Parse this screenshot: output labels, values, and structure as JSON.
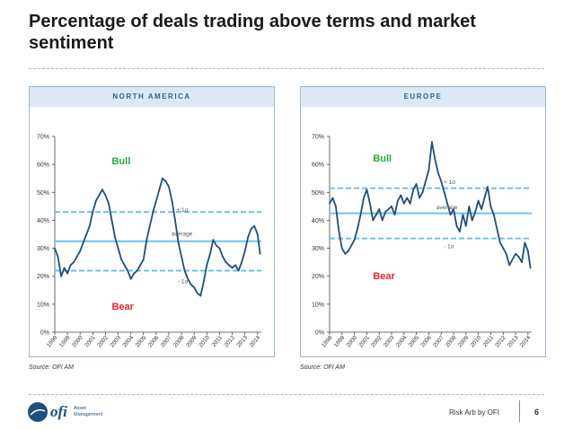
{
  "header": {
    "title": "Percentage of deals trading above terms and market sentiment"
  },
  "colors": {
    "line": "#1f4f7d",
    "average": "#6cc4ea",
    "band": "#6cc4ea",
    "bull": "#2aa63c",
    "bear": "#e2262a",
    "panel_header_bg": "#dce9f4",
    "panel_header_text": "#3a5e86"
  },
  "chart_data": [
    {
      "type": "line",
      "panel_title": "NORTH AMERICA",
      "x": [
        "1998",
        "1999",
        "2000",
        "2001",
        "2002",
        "2003",
        "2004",
        "2005",
        "2006",
        "2007",
        "2008",
        "2009",
        "2010",
        "2011",
        "2012",
        "2013",
        "2014"
      ],
      "xlim": [
        1998,
        2014.3
      ],
      "ylim": [
        0,
        70
      ],
      "yticks": [
        "0%",
        "10%",
        "20%",
        "30%",
        "40%",
        "50%",
        "60%",
        "70%"
      ],
      "grid": false,
      "series": [
        {
          "name": "% of deals trading above terms",
          "points": [
            [
              1998.0,
              30
            ],
            [
              1998.25,
              27
            ],
            [
              1998.5,
              20
            ],
            [
              1998.75,
              23
            ],
            [
              1999.0,
              21
            ],
            [
              1999.25,
              24
            ],
            [
              1999.5,
              25
            ],
            [
              1999.75,
              27
            ],
            [
              2000.0,
              29
            ],
            [
              2000.25,
              32
            ],
            [
              2000.5,
              35
            ],
            [
              2000.75,
              38
            ],
            [
              2001.0,
              43
            ],
            [
              2001.25,
              47
            ],
            [
              2001.5,
              49
            ],
            [
              2001.75,
              51
            ],
            [
              2002.0,
              49
            ],
            [
              2002.25,
              46
            ],
            [
              2002.5,
              40
            ],
            [
              2002.75,
              34
            ],
            [
              2003.0,
              30
            ],
            [
              2003.25,
              26
            ],
            [
              2003.5,
              24
            ],
            [
              2003.75,
              22
            ],
            [
              2004.0,
              19
            ],
            [
              2004.25,
              21
            ],
            [
              2004.5,
              22
            ],
            [
              2004.75,
              24
            ],
            [
              2005.0,
              26
            ],
            [
              2005.25,
              33
            ],
            [
              2005.5,
              38
            ],
            [
              2005.75,
              43
            ],
            [
              2006.0,
              47
            ],
            [
              2006.25,
              51
            ],
            [
              2006.5,
              55
            ],
            [
              2006.75,
              54
            ],
            [
              2007.0,
              52
            ],
            [
              2007.25,
              47
            ],
            [
              2007.5,
              40
            ],
            [
              2007.75,
              32
            ],
            [
              2008.0,
              27
            ],
            [
              2008.25,
              22
            ],
            [
              2008.5,
              19
            ],
            [
              2008.75,
              17
            ],
            [
              2009.0,
              16
            ],
            [
              2009.25,
              14
            ],
            [
              2009.5,
              13
            ],
            [
              2009.75,
              18
            ],
            [
              2010.0,
              24
            ],
            [
              2010.25,
              28
            ],
            [
              2010.5,
              33
            ],
            [
              2010.75,
              31
            ],
            [
              2011.0,
              30
            ],
            [
              2011.25,
              27
            ],
            [
              2011.5,
              25
            ],
            [
              2011.75,
              24
            ],
            [
              2012.0,
              23
            ],
            [
              2012.25,
              24
            ],
            [
              2012.5,
              22
            ],
            [
              2012.75,
              25
            ],
            [
              2013.0,
              29
            ],
            [
              2013.25,
              34
            ],
            [
              2013.5,
              37
            ],
            [
              2013.75,
              38
            ],
            [
              2014.0,
              35
            ],
            [
              2014.2,
              28
            ]
          ]
        }
      ],
      "average": 32.5,
      "plus_sigma": 43,
      "minus_sigma": 22,
      "annotations": {
        "bull": "Bull",
        "bear": "Bear",
        "plus_sigma": "+ 1σ",
        "average": "average",
        "minus_sigma": "- 1σ"
      },
      "source": "Source: OFI AM"
    },
    {
      "type": "line",
      "panel_title": "EUROPE",
      "x": [
        "1998",
        "1999",
        "2000",
        "2001",
        "2002",
        "2003",
        "2004",
        "2005",
        "2006",
        "2007",
        "2008",
        "2009",
        "2010",
        "2011",
        "2012",
        "2013",
        "2014"
      ],
      "xlim": [
        1998,
        2014.3
      ],
      "ylim": [
        0,
        70
      ],
      "yticks": [
        "0%",
        "10%",
        "20%",
        "30%",
        "40%",
        "50%",
        "60%",
        "70%"
      ],
      "grid": false,
      "series": [
        {
          "name": "% of deals trading above terms",
          "points": [
            [
              1998.0,
              46
            ],
            [
              1998.25,
              48
            ],
            [
              1998.5,
              45
            ],
            [
              1998.75,
              36
            ],
            [
              1999.0,
              30
            ],
            [
              1999.25,
              28
            ],
            [
              1999.5,
              29
            ],
            [
              1999.75,
              31
            ],
            [
              2000.0,
              33
            ],
            [
              2000.25,
              37
            ],
            [
              2000.5,
              42
            ],
            [
              2000.75,
              48
            ],
            [
              2001.0,
              51
            ],
            [
              2001.25,
              46
            ],
            [
              2001.5,
              40
            ],
            [
              2001.75,
              42
            ],
            [
              2002.0,
              44
            ],
            [
              2002.25,
              40
            ],
            [
              2002.5,
              43
            ],
            [
              2002.75,
              44
            ],
            [
              2003.0,
              45
            ],
            [
              2003.25,
              42
            ],
            [
              2003.5,
              47
            ],
            [
              2003.75,
              49
            ],
            [
              2004.0,
              46
            ],
            [
              2004.25,
              48
            ],
            [
              2004.5,
              46
            ],
            [
              2004.75,
              51
            ],
            [
              2005.0,
              53
            ],
            [
              2005.25,
              48
            ],
            [
              2005.5,
              50
            ],
            [
              2005.75,
              54
            ],
            [
              2006.0,
              58
            ],
            [
              2006.25,
              68
            ],
            [
              2006.5,
              62
            ],
            [
              2006.75,
              57
            ],
            [
              2007.0,
              54
            ],
            [
              2007.25,
              50
            ],
            [
              2007.5,
              46
            ],
            [
              2007.75,
              42
            ],
            [
              2008.0,
              44
            ],
            [
              2008.25,
              38
            ],
            [
              2008.5,
              36
            ],
            [
              2008.75,
              42
            ],
            [
              2009.0,
              38
            ],
            [
              2009.25,
              45
            ],
            [
              2009.5,
              40
            ],
            [
              2009.75,
              43
            ],
            [
              2010.0,
              47
            ],
            [
              2010.25,
              44
            ],
            [
              2010.5,
              48
            ],
            [
              2010.75,
              52
            ],
            [
              2011.0,
              45
            ],
            [
              2011.25,
              42
            ],
            [
              2011.5,
              37
            ],
            [
              2011.75,
              32
            ],
            [
              2012.0,
              30
            ],
            [
              2012.25,
              28
            ],
            [
              2012.5,
              24
            ],
            [
              2012.75,
              26
            ],
            [
              2013.0,
              28
            ],
            [
              2013.25,
              27
            ],
            [
              2013.5,
              25
            ],
            [
              2013.75,
              32
            ],
            [
              2014.0,
              29
            ],
            [
              2014.2,
              23
            ]
          ]
        }
      ],
      "average": 42.5,
      "plus_sigma": 51.5,
      "minus_sigma": 33.5,
      "annotations": {
        "bull": "Bull",
        "bear": "Bear",
        "plus_sigma": "+ 1σ",
        "average": "average",
        "minus_sigma": "- 1σ"
      },
      "source": "Source: OFI AM"
    }
  ],
  "footer": {
    "logo_text": "ofi",
    "logo_sub1": "Asset",
    "logo_sub2": "Management",
    "text": "Risk Arb by OFI",
    "page": "6"
  }
}
